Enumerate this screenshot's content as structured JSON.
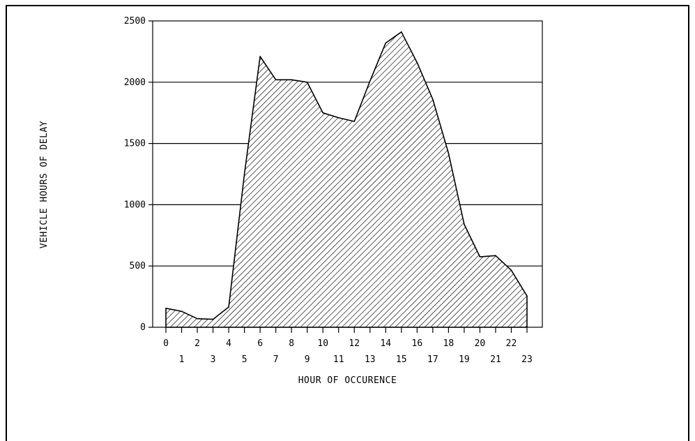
{
  "chart_data": {
    "type": "area",
    "title": "",
    "xlabel": "HOUR OF OCCURENCE",
    "ylabel": "VEHICLE HOURS OF DELAY",
    "x": [
      0,
      1,
      2,
      3,
      4,
      5,
      6,
      7,
      8,
      9,
      10,
      11,
      12,
      13,
      14,
      15,
      16,
      17,
      18,
      19,
      20,
      21,
      22,
      23
    ],
    "values": [
      155,
      130,
      70,
      65,
      165,
      1250,
      2210,
      2020,
      2020,
      2000,
      1750,
      1710,
      1680,
      2010,
      2320,
      2410,
      2160,
      1860,
      1420,
      840,
      575,
      585,
      465,
      255
    ],
    "xlim": [
      0,
      23
    ],
    "ylim": [
      0,
      2500
    ],
    "yticks": [
      0,
      500,
      1000,
      1500,
      2000,
      2500
    ],
    "ytick_labels": [
      "0",
      "500",
      "1000",
      "1500",
      "2000",
      "2500"
    ],
    "xtick_labels": [
      "0",
      "1",
      "2",
      "3",
      "4",
      "5",
      "6",
      "7",
      "8",
      "9",
      "10",
      "11",
      "12",
      "13",
      "14",
      "15",
      "16",
      "17",
      "18",
      "19",
      "20",
      "21",
      "22",
      "23"
    ],
    "grid": "horizontal",
    "fill": "diagonal-hatch",
    "colors": {
      "line": "#000000",
      "fill": "#ffffff",
      "hatch": "#000000"
    }
  }
}
